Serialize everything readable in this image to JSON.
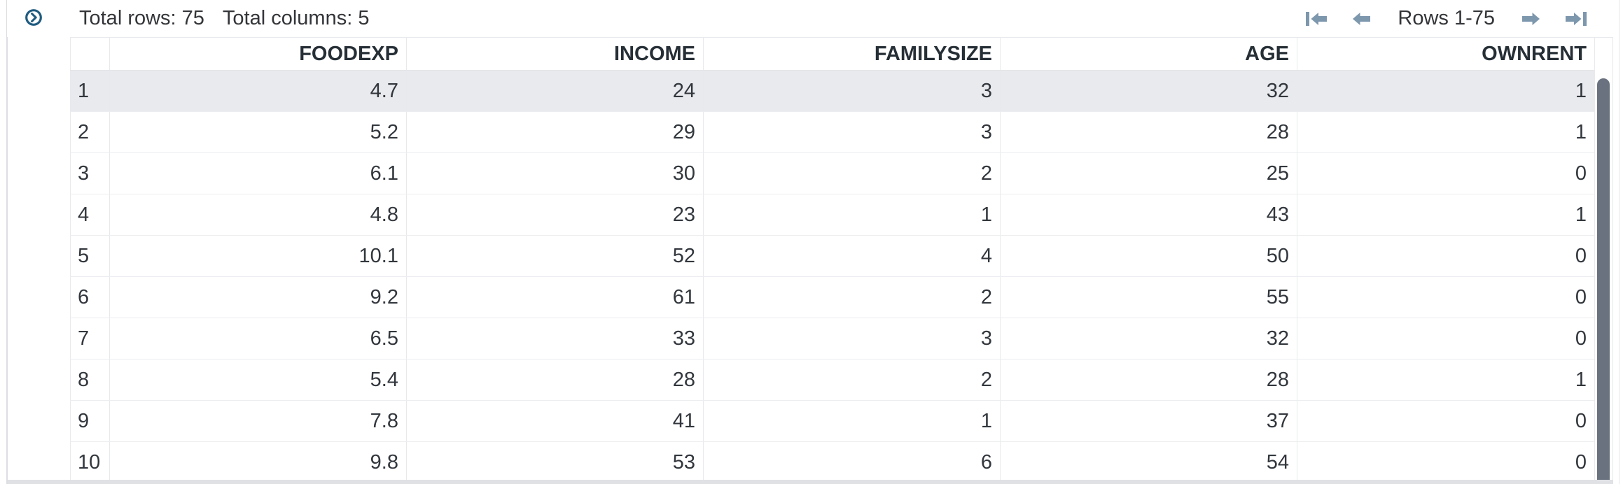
{
  "toolbar": {
    "expand_icon": "chevron-right-circle",
    "total_rows_label": "Total rows: 75",
    "total_columns_label": "Total columns: 5",
    "pagination": {
      "first_icon": "go-to-first-rows",
      "prev_icon": "go-to-previous-rows",
      "range_label": "Rows 1-75",
      "next_icon": "go-to-next-rows",
      "last_icon": "go-to-last-rows"
    }
  },
  "table": {
    "columns": [
      "FOODEXP",
      "INCOME",
      "FAMILYSIZE",
      "AGE",
      "OWNRENT"
    ],
    "selected_row_index": 0,
    "rows": [
      [
        "1",
        "4.7",
        "24",
        "3",
        "32",
        "1"
      ],
      [
        "2",
        "5.2",
        "29",
        "3",
        "28",
        "1"
      ],
      [
        "3",
        "6.1",
        "30",
        "2",
        "25",
        "0"
      ],
      [
        "4",
        "4.8",
        "23",
        "1",
        "43",
        "1"
      ],
      [
        "5",
        "10.1",
        "52",
        "4",
        "50",
        "0"
      ],
      [
        "6",
        "9.2",
        "61",
        "2",
        "55",
        "0"
      ],
      [
        "7",
        "6.5",
        "33",
        "3",
        "32",
        "0"
      ],
      [
        "8",
        "5.4",
        "28",
        "2",
        "28",
        "1"
      ],
      [
        "9",
        "7.8",
        "41",
        "1",
        "37",
        "0"
      ],
      [
        "10",
        "9.8",
        "53",
        "6",
        "54",
        "0"
      ]
    ]
  },
  "colors": {
    "accent-arrow": "#7d97ad",
    "expand-icon": "#1f5b80",
    "selected-row-bg": "#e9eaee",
    "scrollbar-thumb": "#6a7280",
    "grid-line": "#e7e9ec",
    "text-primary": "#32373d",
    "header-text": "#262f36",
    "toolbar-text": "#333538"
  }
}
